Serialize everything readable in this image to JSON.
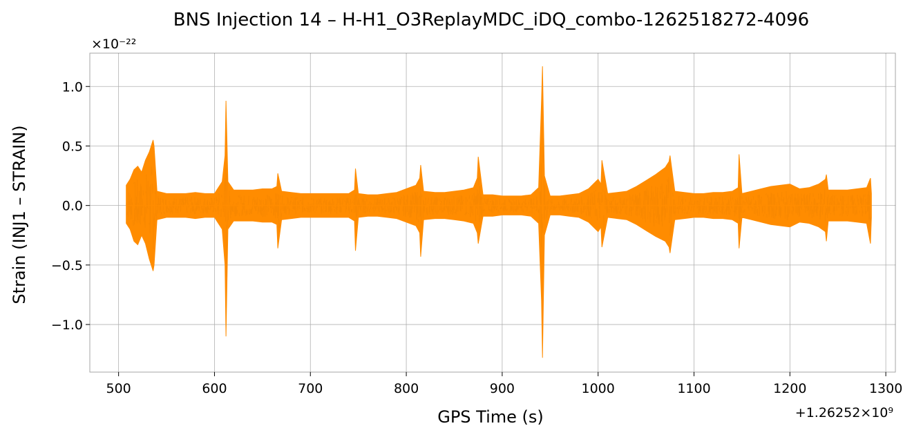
{
  "chart_data": {
    "type": "line",
    "title": "BNS Injection 14 – H-H1_O3ReplayMDC_iDQ_combo-1262518272-4096",
    "xlabel": "GPS Time (s)",
    "ylabel": "Strain (INJ1 – STRAIN)",
    "x_offset_label": "+1.26252×10⁹",
    "y_scale_label": "×10⁻²²",
    "xlim": [
      470,
      1310
    ],
    "ylim": [
      -1.4,
      1.28
    ],
    "xticks": [
      500,
      600,
      700,
      800,
      900,
      1000,
      1100,
      1200,
      1300
    ],
    "xtick_labels": [
      "500",
      "600",
      "700",
      "800",
      "900",
      "1000",
      "1100",
      "1200",
      "1300"
    ],
    "yticks": [
      -1.0,
      -0.5,
      0.0,
      0.5,
      1.0
    ],
    "ytick_labels": [
      "−1.0",
      "−0.5",
      "0.0",
      "0.5",
      "1.0"
    ],
    "grid": true,
    "series": [
      {
        "color": "#ff8c00",
        "x": [
          508,
          512,
          516,
          520,
          524,
          528,
          532,
          536,
          537,
          540,
          550,
          560,
          570,
          580,
          590,
          600,
          608,
          611,
          612,
          614,
          620,
          630,
          640,
          650,
          660,
          665,
          666,
          670,
          680,
          690,
          700,
          710,
          720,
          730,
          740,
          746,
          747,
          750,
          760,
          770,
          780,
          790,
          800,
          810,
          814,
          815,
          818,
          830,
          840,
          850,
          860,
          870,
          874,
          875,
          880,
          890,
          900,
          910,
          920,
          930,
          938,
          941,
          942,
          944,
          950,
          960,
          970,
          980,
          990,
          1000,
          1003,
          1004,
          1010,
          1020,
          1030,
          1040,
          1050,
          1060,
          1070,
          1074,
          1075,
          1080,
          1090,
          1100,
          1110,
          1120,
          1130,
          1140,
          1146,
          1147,
          1150,
          1160,
          1170,
          1180,
          1190,
          1200,
          1210,
          1220,
          1230,
          1237,
          1238,
          1240,
          1250,
          1260,
          1270,
          1280,
          1284,
          1285
        ],
        "upper": [
          0.17,
          0.22,
          0.3,
          0.33,
          0.28,
          0.38,
          0.45,
          0.55,
          0.5,
          0.12,
          0.1,
          0.1,
          0.1,
          0.11,
          0.1,
          0.1,
          0.2,
          0.42,
          0.88,
          0.2,
          0.13,
          0.13,
          0.13,
          0.14,
          0.14,
          0.16,
          0.27,
          0.12,
          0.11,
          0.1,
          0.1,
          0.1,
          0.1,
          0.1,
          0.1,
          0.13,
          0.31,
          0.1,
          0.09,
          0.09,
          0.1,
          0.11,
          0.14,
          0.17,
          0.23,
          0.34,
          0.12,
          0.11,
          0.11,
          0.12,
          0.13,
          0.15,
          0.23,
          0.41,
          0.09,
          0.09,
          0.08,
          0.08,
          0.08,
          0.09,
          0.15,
          0.88,
          1.17,
          0.25,
          0.08,
          0.08,
          0.09,
          0.1,
          0.14,
          0.22,
          0.18,
          0.38,
          0.1,
          0.11,
          0.12,
          0.16,
          0.21,
          0.26,
          0.32,
          0.37,
          0.42,
          0.12,
          0.11,
          0.1,
          0.1,
          0.11,
          0.11,
          0.12,
          0.15,
          0.43,
          0.1,
          0.12,
          0.14,
          0.16,
          0.17,
          0.18,
          0.14,
          0.15,
          0.18,
          0.22,
          0.26,
          0.13,
          0.13,
          0.13,
          0.14,
          0.15,
          0.23,
          0.1
        ],
        "lower": [
          -0.15,
          -0.2,
          -0.3,
          -0.33,
          -0.25,
          -0.32,
          -0.45,
          -0.55,
          -0.5,
          -0.12,
          -0.1,
          -0.1,
          -0.1,
          -0.11,
          -0.1,
          -0.1,
          -0.2,
          -0.5,
          -1.1,
          -0.2,
          -0.13,
          -0.13,
          -0.13,
          -0.14,
          -0.14,
          -0.16,
          -0.36,
          -0.12,
          -0.11,
          -0.1,
          -0.1,
          -0.1,
          -0.1,
          -0.1,
          -0.1,
          -0.13,
          -0.38,
          -0.1,
          -0.09,
          -0.09,
          -0.1,
          -0.11,
          -0.14,
          -0.17,
          -0.23,
          -0.43,
          -0.12,
          -0.11,
          -0.11,
          -0.12,
          -0.13,
          -0.15,
          -0.23,
          -0.32,
          -0.09,
          -0.09,
          -0.08,
          -0.08,
          -0.08,
          -0.09,
          -0.15,
          -0.8,
          -1.28,
          -0.25,
          -0.08,
          -0.08,
          -0.09,
          -0.1,
          -0.14,
          -0.22,
          -0.18,
          -0.35,
          -0.1,
          -0.11,
          -0.12,
          -0.16,
          -0.21,
          -0.26,
          -0.3,
          -0.35,
          -0.4,
          -0.12,
          -0.11,
          -0.1,
          -0.1,
          -0.11,
          -0.11,
          -0.12,
          -0.15,
          -0.36,
          -0.1,
          -0.12,
          -0.14,
          -0.16,
          -0.17,
          -0.18,
          -0.14,
          -0.15,
          -0.18,
          -0.22,
          -0.3,
          -0.13,
          -0.13,
          -0.13,
          -0.14,
          -0.15,
          -0.32,
          -0.1
        ]
      }
    ]
  }
}
